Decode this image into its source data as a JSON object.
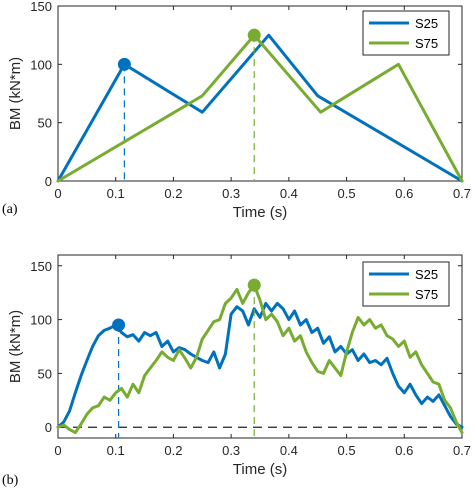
{
  "chart_data": [
    {
      "type": "line",
      "panel_label": "(a)",
      "xlabel": "Time (s)",
      "ylabel": "BM (kN*m)",
      "xlim": [
        0,
        0.7
      ],
      "ylim": [
        0,
        150
      ],
      "xticks": [
        0,
        0.1,
        0.2,
        0.3,
        0.4,
        0.5,
        0.6,
        0.7
      ],
      "xtick_labels": [
        "0",
        "0.1",
        "0.2",
        "0.3",
        "0.4",
        "0.5",
        "0.6",
        "0.7"
      ],
      "yticks": [
        0,
        50,
        100,
        150
      ],
      "ytick_labels": [
        "0",
        "50",
        "100",
        "150"
      ],
      "legend_position": "top-right",
      "grid": false,
      "series": [
        {
          "name": "S25",
          "color": "#0072BD",
          "x": [
            0,
            0.115,
            0.25,
            0.365,
            0.45,
            0.7
          ],
          "y": [
            0,
            100,
            59,
            125,
            73,
            0
          ],
          "peak": {
            "x": 0.115,
            "y": 100
          }
        },
        {
          "name": "S75",
          "color": "#77AC30",
          "x": [
            0,
            0.25,
            0.34,
            0.455,
            0.59,
            0.7
          ],
          "y": [
            0,
            73,
            125,
            59,
            100,
            0
          ],
          "peak": {
            "x": 0.34,
            "y": 125
          }
        }
      ]
    },
    {
      "type": "line",
      "panel_label": "(b)",
      "xlabel": "Time (s)",
      "ylabel": "BM (kN*m)",
      "xlim": [
        0,
        0.7
      ],
      "ylim": [
        -10,
        160
      ],
      "xticks": [
        0,
        0.1,
        0.2,
        0.3,
        0.4,
        0.5,
        0.6,
        0.7
      ],
      "xtick_labels": [
        "0",
        "0.1",
        "0.2",
        "0.3",
        "0.4",
        "0.5",
        "0.6",
        "0.7"
      ],
      "yticks": [
        0,
        50,
        100,
        150
      ],
      "ytick_labels": [
        "0",
        "50",
        "100",
        "150"
      ],
      "legend_position": "top-right",
      "grid": false,
      "zero_line": true,
      "series": [
        {
          "name": "S25",
          "color": "#0072BD",
          "x": [
            0,
            0.01,
            0.02,
            0.03,
            0.04,
            0.05,
            0.06,
            0.07,
            0.08,
            0.09,
            0.1,
            0.11,
            0.12,
            0.13,
            0.14,
            0.15,
            0.16,
            0.17,
            0.18,
            0.19,
            0.2,
            0.21,
            0.22,
            0.23,
            0.24,
            0.25,
            0.26,
            0.27,
            0.28,
            0.29,
            0.3,
            0.31,
            0.32,
            0.33,
            0.34,
            0.35,
            0.36,
            0.37,
            0.38,
            0.39,
            0.4,
            0.41,
            0.42,
            0.43,
            0.44,
            0.45,
            0.46,
            0.47,
            0.48,
            0.49,
            0.5,
            0.51,
            0.52,
            0.53,
            0.54,
            0.55,
            0.56,
            0.57,
            0.58,
            0.59,
            0.6,
            0.61,
            0.62,
            0.63,
            0.64,
            0.65,
            0.66,
            0.67,
            0.68,
            0.69,
            0.7
          ],
          "y": [
            0,
            5,
            15,
            32,
            48,
            62,
            75,
            85,
            90,
            92,
            95,
            88,
            84,
            86,
            80,
            88,
            85,
            88,
            75,
            80,
            70,
            74,
            72,
            68,
            65,
            62,
            60,
            70,
            55,
            68,
            105,
            112,
            108,
            95,
            110,
            102,
            115,
            108,
            115,
            110,
            100,
            108,
            95,
            100,
            88,
            92,
            78,
            84,
            70,
            75,
            68,
            72,
            62,
            68,
            60,
            62,
            58,
            64,
            50,
            38,
            32,
            40,
            30,
            22,
            28,
            24,
            30,
            20,
            10,
            3,
            0
          ],
          "peak": {
            "x": 0.105,
            "y": 95
          }
        },
        {
          "name": "S75",
          "color": "#77AC30",
          "x": [
            0,
            0.01,
            0.02,
            0.03,
            0.04,
            0.05,
            0.06,
            0.07,
            0.08,
            0.09,
            0.1,
            0.11,
            0.12,
            0.13,
            0.14,
            0.15,
            0.16,
            0.17,
            0.18,
            0.19,
            0.2,
            0.21,
            0.22,
            0.23,
            0.24,
            0.25,
            0.26,
            0.27,
            0.28,
            0.29,
            0.3,
            0.31,
            0.32,
            0.33,
            0.34,
            0.35,
            0.36,
            0.37,
            0.38,
            0.39,
            0.4,
            0.41,
            0.42,
            0.43,
            0.44,
            0.45,
            0.46,
            0.47,
            0.48,
            0.49,
            0.5,
            0.51,
            0.52,
            0.53,
            0.54,
            0.55,
            0.56,
            0.57,
            0.58,
            0.59,
            0.6,
            0.61,
            0.62,
            0.63,
            0.64,
            0.65,
            0.66,
            0.67,
            0.68,
            0.69,
            0.7
          ],
          "y": [
            0,
            2,
            -2,
            -5,
            3,
            12,
            18,
            20,
            28,
            25,
            32,
            36,
            28,
            40,
            32,
            48,
            55,
            62,
            70,
            65,
            62,
            72,
            64,
            55,
            65,
            82,
            90,
            98,
            100,
            115,
            120,
            128,
            115,
            125,
            132,
            118,
            100,
            105,
            98,
            85,
            92,
            80,
            85,
            70,
            60,
            52,
            50,
            62,
            55,
            48,
            70,
            88,
            102,
            95,
            100,
            92,
            95,
            85,
            82,
            75,
            80,
            65,
            70,
            58,
            50,
            42,
            40,
            25,
            18,
            5,
            -5
          ],
          "peak": {
            "x": 0.34,
            "y": 132
          }
        }
      ]
    }
  ]
}
